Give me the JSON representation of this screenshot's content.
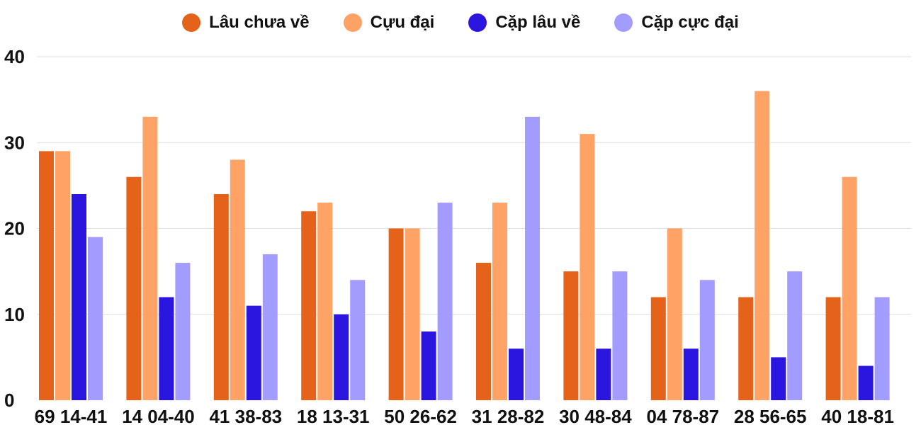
{
  "chart_data": {
    "type": "bar",
    "title": "",
    "xlabel": "",
    "ylabel": "",
    "ylim": [
      0,
      40
    ],
    "yticks": [
      0,
      10,
      20,
      30,
      40
    ],
    "grid": true,
    "legend_position": "top-center",
    "categories": [
      "69 14-41",
      "14 04-40",
      "41 38-83",
      "18 13-31",
      "50 26-62",
      "31 28-82",
      "30 48-84",
      "04 78-87",
      "28 56-65",
      "40 18-81"
    ],
    "series": [
      {
        "name": "Lâu chưa về",
        "color": "#e5621a",
        "values": [
          29,
          26,
          24,
          22,
          20,
          16,
          15,
          12,
          12,
          12
        ]
      },
      {
        "name": "Cựu đại",
        "color": "#ffa266",
        "values": [
          29,
          33,
          28,
          23,
          20,
          23,
          31,
          20,
          36,
          26
        ]
      },
      {
        "name": "Cặp lâu về",
        "color": "#2b16e0",
        "values": [
          24,
          12,
          11,
          10,
          8,
          6,
          6,
          6,
          5,
          4
        ]
      },
      {
        "name": "Cặp cực đại",
        "color": "#a29cff",
        "values": [
          19,
          16,
          17,
          14,
          23,
          33,
          15,
          14,
          15,
          12
        ]
      }
    ]
  }
}
